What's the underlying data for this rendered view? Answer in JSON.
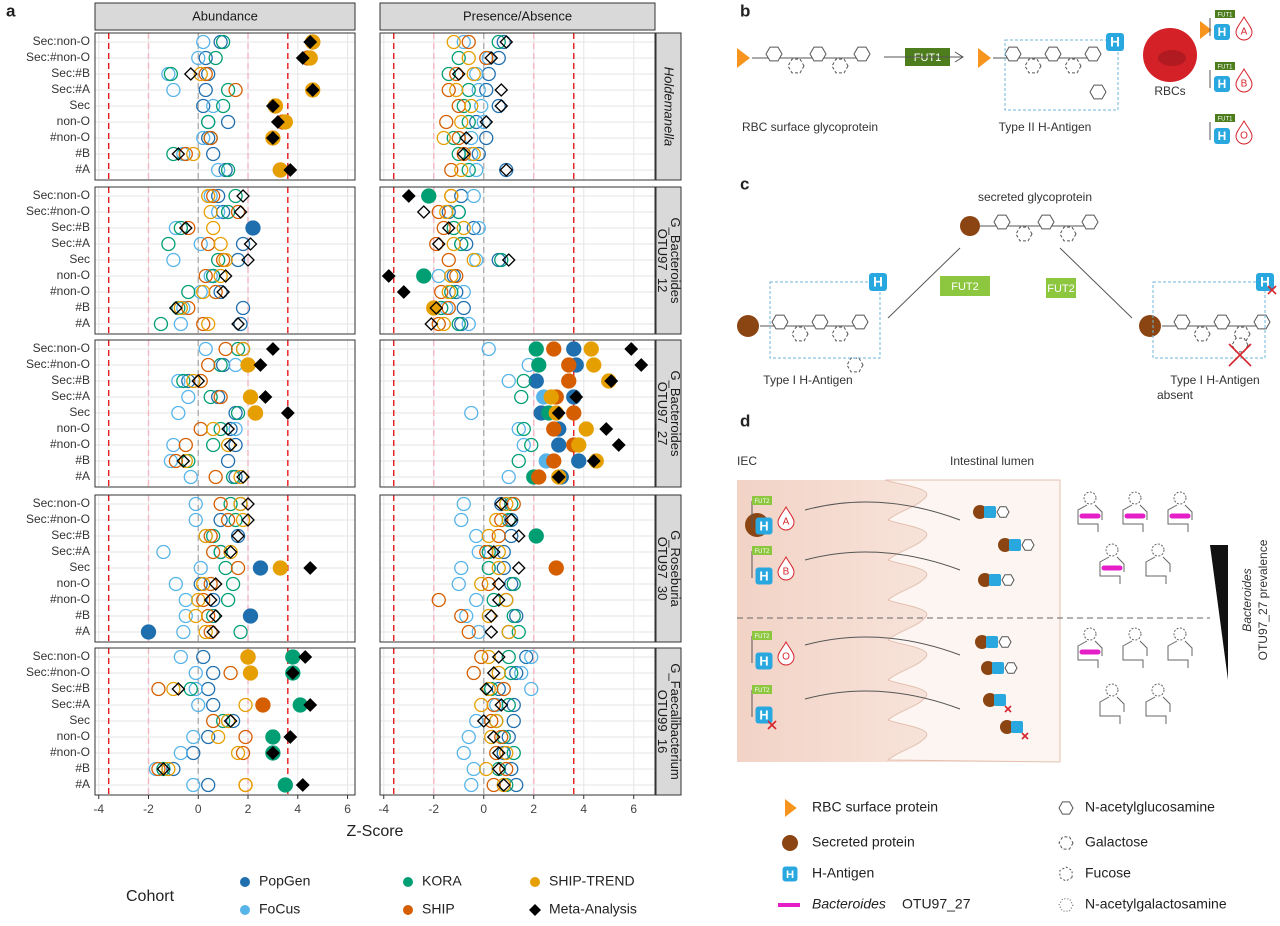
{
  "chart_data": {
    "type": "dot",
    "label": "a",
    "x_label": "Z-Score",
    "columns": [
      {
        "title": "Abundance",
        "key": "abundance",
        "xlim": [
          -4.15,
          6.3
        ]
      },
      {
        "title": "Presence/Absence",
        "key": "presence",
        "xlim": [
          -4.15,
          6.85
        ]
      }
    ],
    "xticks": [
      -4,
      -2,
      0,
      2,
      4,
      6
    ],
    "rows": [
      "Sec:non-O",
      "Sec:#non-O",
      "Sec:#B",
      "Sec:#A",
      "Sec",
      "non-O",
      "#non-O",
      "#B",
      "#A"
    ],
    "reference_lines": [
      {
        "value": -3.6,
        "color": "#e41a1c"
      },
      {
        "value": 3.6,
        "color": "#e41a1c"
      },
      {
        "value": -2,
        "color": "#f4b6c2"
      },
      {
        "value": 2,
        "color": "#f4b6c2"
      },
      {
        "value": 0,
        "color": "#b0b0b0"
      }
    ],
    "grid": true,
    "legend_title": "Cohort",
    "series": [
      {
        "name": "PopGen",
        "color": "#1f6fae",
        "marker": "circle"
      },
      {
        "name": "FoCus",
        "color": "#56b4e9",
        "marker": "circle"
      },
      {
        "name": "KORA",
        "color": "#009e73",
        "marker": "circle"
      },
      {
        "name": "SHIP",
        "color": "#d55e00",
        "marker": "circle"
      },
      {
        "name": "SHIP-TREND",
        "color": "#e69f00",
        "marker": "circle"
      },
      {
        "name": "Meta-Analysis",
        "color": "#000000",
        "marker": "diamond"
      }
    ],
    "facets": [
      {
        "strip": [
          "Holdemanella"
        ],
        "italic": true,
        "abundance": [
          [
            0.9,
            0.3,
            0.4,
            0.3,
            0.2,
            1.2,
            0.4,
            0.6,
            1.1
          ],
          [
            0.2,
            0.0,
            -1.2,
            -1.0,
            0.6,
            0.4,
            0.2,
            -0.6,
            0.8
          ],
          [
            1.0,
            0.7,
            -1.1,
            1.2,
            1.0,
            0.4,
            0.5,
            -1.0,
            1.2
          ],
          [
            4.6,
            4.4,
            0.3,
            1.5,
            3.1,
            3.4,
            0.5,
            -0.5,
            3.3
          ],
          [
            4.6,
            4.5,
            0.1,
            4.6,
            3.1,
            3.5,
            3.0,
            -0.2,
            3.3
          ],
          [
            4.5,
            4.2,
            -0.3,
            4.6,
            3.0,
            3.2,
            3.0,
            -0.8,
            3.7
          ]
        ],
        "presence": [
          [
            0.8,
            0.6,
            0.2,
            0.1,
            0.6,
            -0.3,
            0.1,
            -0.2,
            0.9
          ],
          [
            -0.8,
            0.2,
            -0.3,
            -0.2,
            -0.1,
            0.0,
            -0.5,
            -0.5,
            -0.3
          ],
          [
            0.6,
            -1.0,
            -1.4,
            -0.6,
            -0.8,
            -0.6,
            -1.2,
            -1.0,
            -0.6
          ],
          [
            -0.6,
            0.1,
            -1.1,
            -1.4,
            -1.0,
            -1.5,
            -1.0,
            -0.8,
            -1.3
          ],
          [
            -1.2,
            -0.6,
            -0.4,
            -1.1,
            -0.5,
            -0.9,
            -1.6,
            -0.4,
            -0.9
          ],
          [
            0.9,
            0.3,
            -1.0,
            0.7,
            0.7,
            0.1,
            -0.7,
            -0.8,
            0.9
          ]
        ]
      },
      {
        "strip": [
          "OTU97_12",
          "G_Bacteroides"
        ],
        "italic": false,
        "abundance": [
          [
            0.8,
            1.0,
            2.2,
            1.8,
            1.6,
            0.6,
            0.9,
            1.8,
            1.7
          ],
          [
            0.5,
            0.8,
            -0.9,
            0.1,
            -1.0,
            0.5,
            0.1,
            -0.6,
            -0.7
          ],
          [
            1.5,
            1.2,
            -0.7,
            -1.2,
            0.8,
            0.6,
            -0.4,
            -0.8,
            -1.5
          ],
          [
            0.6,
            1.6,
            -0.4,
            0.4,
            1.0,
            0.3,
            0.7,
            -0.4,
            0.2
          ],
          [
            0.4,
            0.5,
            0.6,
            0.9,
            1.1,
            0.9,
            0.2,
            -0.7,
            0.4
          ],
          [
            1.8,
            1.7,
            -0.5,
            2.1,
            2.0,
            1.1,
            1.0,
            -0.9,
            1.6
          ]
        ],
        "presence": [
          [
            -0.9,
            -1.4,
            -0.4,
            -0.7,
            0.6,
            -1.2,
            -1.1,
            -0.8,
            -0.9
          ],
          [
            -0.4,
            -1.0,
            -0.2,
            -0.9,
            -0.3,
            -1.8,
            -0.8,
            -1.5,
            -0.6
          ],
          [
            -2.2,
            -1.0,
            -1.2,
            -0.9,
            0.7,
            -2.4,
            -1.3,
            -1.7,
            -1.0
          ],
          [
            -1.3,
            -1.8,
            -1.6,
            -1.9,
            -1.4,
            -1.1,
            -1.7,
            -1.4,
            -1.8
          ],
          [
            -1.3,
            -1.5,
            -0.8,
            -1.2,
            -0.4,
            -1.3,
            -1.4,
            -2.0,
            -1.6
          ],
          [
            -3.0,
            -2.4,
            -1.4,
            -1.8,
            1.0,
            -3.8,
            -3.2,
            -1.9,
            -2.1
          ]
        ]
      },
      {
        "strip": [
          "OTU97_27",
          "G_Bacteroides"
        ],
        "italic": false,
        "abundance": [
          [
            1.8,
            1.0,
            -0.4,
            0.8,
            1.5,
            1.3,
            1.5,
            1.2,
            1.5
          ],
          [
            0.3,
            1.5,
            -0.8,
            -0.4,
            -0.8,
            1.5,
            -1.0,
            -1.1,
            -0.3
          ],
          [
            1.6,
            0.9,
            -0.6,
            0.5,
            1.6,
            0.9,
            0.6,
            -0.4,
            1.4
          ],
          [
            1.1,
            0.4,
            0.1,
            0.9,
            2.3,
            0.1,
            -0.5,
            -0.9,
            0.7
          ],
          [
            1.8,
            2.0,
            -0.2,
            2.1,
            2.3,
            0.6,
            1.2,
            -0.5,
            1.7
          ],
          [
            3.0,
            2.5,
            0.0,
            2.7,
            3.6,
            1.2,
            1.3,
            -0.6,
            1.8
          ]
        ],
        "presence": [
          [
            3.6,
            3.7,
            2.1,
            3.6,
            2.3,
            3.0,
            3.0,
            3.8,
            3.1
          ],
          [
            0.2,
            1.8,
            1.0,
            2.4,
            -0.5,
            1.4,
            1.6,
            2.5,
            1.0
          ],
          [
            2.1,
            2.2,
            1.6,
            1.5,
            2.6,
            1.6,
            1.9,
            1.4,
            2.0
          ],
          [
            2.8,
            3.4,
            3.4,
            2.9,
            3.6,
            2.8,
            3.6,
            2.8,
            2.2
          ],
          [
            4.3,
            4.4,
            5.0,
            2.7,
            2.9,
            4.1,
            3.8,
            4.5,
            3.0
          ],
          [
            5.9,
            6.3,
            5.1,
            3.7,
            3.0,
            4.9,
            5.4,
            4.4,
            3.0
          ]
        ]
      },
      {
        "strip": [
          "OTU97_30",
          "G_Roseburia"
        ],
        "italic": false,
        "abundance": [
          [
            1.7,
            0.9,
            1.6,
            0.9,
            2.5,
            0.1,
            0.6,
            2.1,
            -2.0
          ],
          [
            -0.1,
            -0.1,
            0.3,
            -1.4,
            0.1,
            -0.9,
            -0.5,
            -0.5,
            -0.6
          ],
          [
            1.3,
            1.5,
            0.6,
            0.9,
            1.1,
            1.4,
            1.2,
            0.6,
            1.7
          ],
          [
            0.9,
            1.2,
            0.5,
            0.6,
            1.6,
            0.5,
            0.2,
            0.4,
            0.5
          ],
          [
            1.7,
            1.8,
            0.3,
            1.3,
            3.3,
            0.2,
            0.0,
            -0.1,
            0.3
          ],
          [
            2.0,
            2.0,
            1.6,
            1.3,
            4.5,
            0.7,
            0.5,
            0.7,
            0.6
          ]
        ],
        "presence": [
          [
            0.7,
            1.1,
            1.1,
            0.8,
            0.8,
            1.1,
            0.9,
            1.3,
            1.0
          ],
          [
            -0.8,
            -0.9,
            -0.3,
            -0.2,
            -0.9,
            -1.0,
            -0.3,
            -0.7,
            -0.2
          ],
          [
            1.1,
            1.0,
            2.1,
            0.2,
            0.2,
            1.2,
            0.4,
            1.2,
            1.4
          ],
          [
            1.2,
            0.7,
            0.6,
            0.1,
            2.9,
            0.2,
            -1.8,
            -0.9,
            -0.6
          ],
          [
            0.9,
            0.5,
            0.2,
            0.6,
            0.6,
            -0.1,
            0.9,
            0.2,
            1.0
          ],
          [
            0.7,
            1.1,
            1.4,
            0.4,
            1.4,
            0.6,
            0.6,
            0.3,
            0.3
          ]
        ]
      },
      {
        "strip": [
          "OTU99_16",
          "G_Faecalibacterium"
        ],
        "italic": false,
        "abundance": [
          [
            0.2,
            0.6,
            0.4,
            0.6,
            1.4,
            0.4,
            -0.2,
            -1.0,
            0.4
          ],
          [
            -0.7,
            -0.1,
            -0.1,
            0.0,
            1.2,
            -0.2,
            -0.7,
            -1.7,
            -0.2
          ],
          [
            3.8,
            3.8,
            -0.3,
            4.1,
            1.0,
            3.0,
            3.0,
            -1.4,
            3.5
          ],
          [
            2.0,
            1.3,
            -1.6,
            2.6,
            0.6,
            1.9,
            1.8,
            -1.6,
            1.9
          ],
          [
            2.0,
            2.1,
            -1.0,
            1.9,
            1.2,
            0.8,
            1.6,
            -1.2,
            1.9
          ],
          [
            4.3,
            3.8,
            -0.8,
            4.5,
            1.3,
            3.7,
            3.0,
            -1.4,
            4.2
          ]
        ],
        "presence": [
          [
            1.7,
            1.3,
            0.6,
            1.2,
            1.2,
            1.0,
            0.8,
            1.1,
            1.3
          ],
          [
            1.9,
            1.5,
            1.9,
            0.5,
            -0.3,
            -0.6,
            -0.8,
            -0.4,
            -0.5
          ],
          [
            1.0,
            1.1,
            0.3,
            1.0,
            0.5,
            0.8,
            1.2,
            0.6,
            0.9
          ],
          [
            -0.1,
            -0.4,
            0.8,
            0.4,
            0.3,
            0.7,
            0.5,
            0.9,
            0.4
          ],
          [
            0.2,
            0.6,
            0.2,
            -0.1,
            0.5,
            0.3,
            0.9,
            0.1,
            0.8
          ],
          [
            0.6,
            0.4,
            0.1,
            0.7,
            0.0,
            0.4,
            0.6,
            0.6,
            0.8
          ]
        ]
      }
    ]
  },
  "panel_b": {
    "label": "b",
    "enzyme": "FUT1",
    "source": "RBC surface glycoprotein",
    "target": "Type II H-Antigen",
    "cells": "RBCs",
    "antigen": "H",
    "groups": [
      "A",
      "B",
      "O"
    ]
  },
  "panel_c": {
    "label": "c",
    "source": "secreted glycoprotein",
    "enzyme": "FUT2",
    "enzyme_broken": "FUT2",
    "target": "Type I H-Antigen",
    "absent": [
      "Type I H-Antigen",
      "absent"
    ]
  },
  "panel_d": {
    "label": "d",
    "left": "IEC",
    "right": "Intestinal lumen",
    "genus": "Bacteroides",
    "prevalence": "OTU97_27 prevalence",
    "legend": {
      "rbc": "RBC surface protein",
      "secreted": "Secreted protein",
      "h": "H-Antigen",
      "otu": "OTU97_27",
      "glcnac": "N-acetylglucosamine",
      "gal": "Galactose",
      "fuc": "Fucose",
      "galnac": "N-acetylgalactosamine"
    }
  }
}
